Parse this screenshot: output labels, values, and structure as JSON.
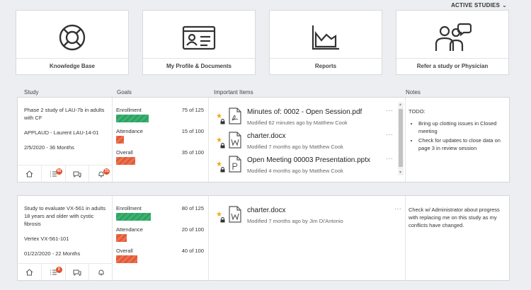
{
  "header": {
    "active_studies": "ACTIVE STUDIES"
  },
  "tiles": [
    {
      "label": "Knowledge Base",
      "icon": "lifebuoy-icon"
    },
    {
      "label": "My Profile & Documents",
      "icon": "id-card-icon"
    },
    {
      "label": "Reports",
      "icon": "area-chart-icon"
    },
    {
      "label": "Refer a study or Physician",
      "icon": "people-chat-icon"
    }
  ],
  "columns": {
    "study": "Study",
    "goals": "Goals",
    "items": "Important Items",
    "notes": "Notes"
  },
  "studies": [
    {
      "title": "Phase 2 study of LAU-7b in adults with CF",
      "protocol": "APPLAUD - Laurent LAU-14-01",
      "date": "2/5/2020 - 36 Months",
      "badges": {
        "tasks": "46",
        "alerts": "31"
      },
      "goals": [
        {
          "name": "Enrollment",
          "value": "75 of 125",
          "fraction": 0.6,
          "color": "green"
        },
        {
          "name": "Attendance",
          "value": "15 of 100",
          "fraction": 0.15,
          "color": "red"
        },
        {
          "name": "Overall",
          "value": "35 of 100",
          "fraction": 0.35,
          "color": "red"
        }
      ],
      "items": [
        {
          "name": "Minutes of: 0002 - Open Session.pdf",
          "meta": "Modified 62 minutes ago by Matthew Cook",
          "type": "pdf"
        },
        {
          "name": "charter.docx",
          "meta": "Modified 7 months ago by Matthew Cook",
          "type": "word"
        },
        {
          "name": "Open Meeting 00003 Presentation.pptx",
          "meta": "Modified 4 months ago by Matthew Cook",
          "type": "ppt"
        }
      ],
      "notes": {
        "title": "TODO:",
        "bullets": [
          "Bring up clotting issues in Closed meeting",
          "Check for updates to close data on page 3 in review session"
        ]
      }
    },
    {
      "title": "Study to evaluate VX-561 in adults 18 years and older with cystic fibrosis",
      "protocol": "Vertex VX-561-101",
      "date": "01/22/2020 - 22 Months",
      "badges": {
        "tasks": "2",
        "alerts": ""
      },
      "goals": [
        {
          "name": "Enrollment",
          "value": "80 of 125",
          "fraction": 0.64,
          "color": "green"
        },
        {
          "name": "Attendance",
          "value": "20 of 100",
          "fraction": 0.2,
          "color": "red"
        },
        {
          "name": "Overall",
          "value": "40 of 100",
          "fraction": 0.4,
          "color": "red"
        }
      ],
      "items": [
        {
          "name": "charter.docx",
          "meta": "Modified 7 months ago by Jim Di'Antonio",
          "type": "word"
        }
      ],
      "notes": {
        "text": "Check w/ Administrator about progress with replacing me on this study as my conflicts have changed."
      }
    }
  ],
  "more_label": "···"
}
